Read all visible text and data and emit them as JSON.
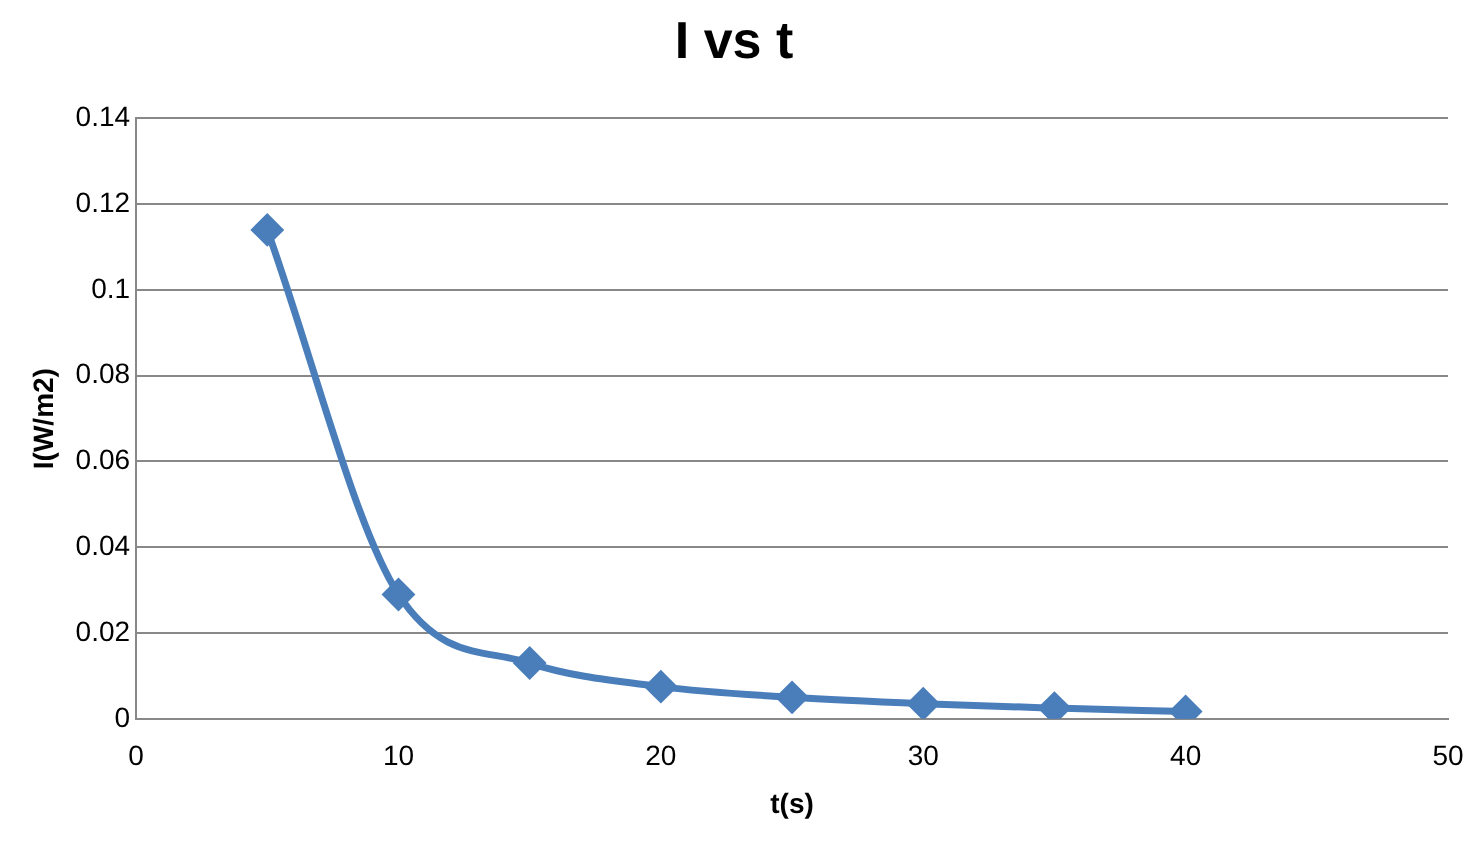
{
  "chart_data": {
    "type": "line",
    "title": "I vs t",
    "xlabel": "t(s)",
    "ylabel": "I(W/m2)",
    "x": [
      5,
      10,
      15,
      20,
      25,
      30,
      35,
      40
    ],
    "series": [
      {
        "color": "#4a7ebb",
        "values": [
          0.114,
          0.029,
          0.013,
          0.0075,
          0.005,
          0.0035,
          0.0025,
          0.0017
        ]
      }
    ],
    "xlim": [
      0,
      50
    ],
    "xticks": [
      0,
      10,
      20,
      30,
      40,
      50
    ],
    "ylim": [
      0,
      0.14
    ],
    "yticks": [
      0,
      0.02,
      0.04,
      0.06,
      0.08,
      0.1,
      0.12,
      0.14
    ],
    "grid": "y",
    "legend": false,
    "marker": "diamond",
    "line_style": "solid"
  }
}
